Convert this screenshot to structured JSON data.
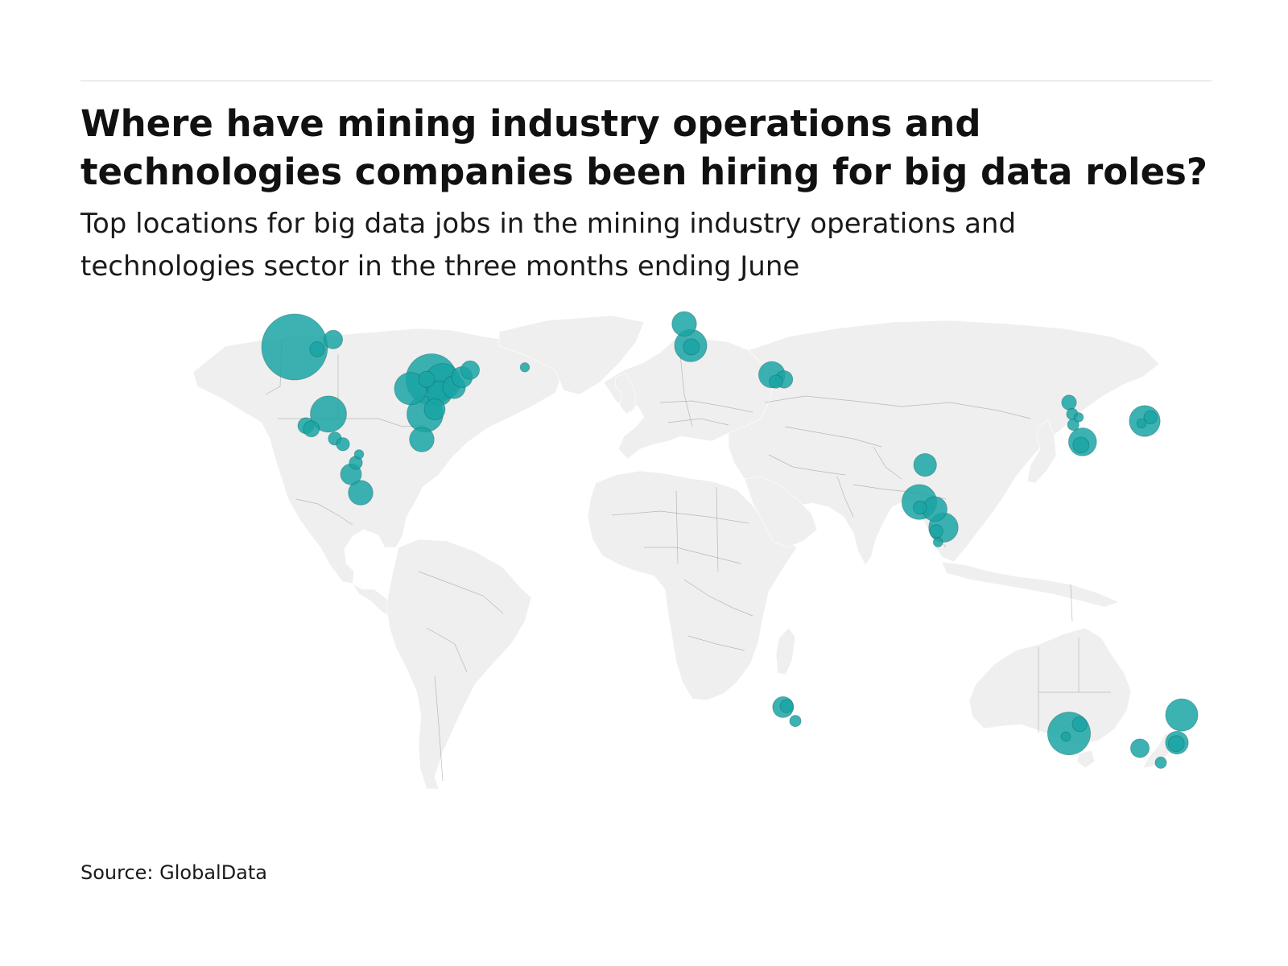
{
  "header": {
    "title": "Where have mining industry operations and technologies companies been hiring for big data roles?",
    "subtitle": "Top locations for big data jobs in the mining industry operations and technologies sector in the three months ending June"
  },
  "footer": {
    "source": "Source: GlobalData"
  },
  "colors": {
    "land": "#efefef",
    "border": "#888888",
    "bubble": "#1aa5a5",
    "bubble_dark": "#0b4545"
  },
  "chart_data": {
    "type": "bubble-map",
    "title": "Where have mining industry operations and technologies companies been hiring for big data roles?",
    "subtitle": "Top locations for big data jobs in the mining industry operations and technologies sector in the three months ending June",
    "size_unit": "relative share of job postings (estimated from bubble area)",
    "locations": [
      {
        "lon": -124.0,
        "lat": 52.0,
        "size": 100
      },
      {
        "lon": -117.0,
        "lat": 51.5,
        "size": 5
      },
      {
        "lon": -112.0,
        "lat": 53.6,
        "size": 8
      },
      {
        "lon": -81.5,
        "lat": 45.0,
        "size": 60
      },
      {
        "lon": -83.0,
        "lat": 45.0,
        "size": 6
      },
      {
        "lon": -88.0,
        "lat": 43.0,
        "size": 24
      },
      {
        "lon": -78.0,
        "lat": 44.5,
        "size": 30
      },
      {
        "lon": -74.5,
        "lat": 43.3,
        "size": 12
      },
      {
        "lon": -79.0,
        "lat": 42.0,
        "size": 14
      },
      {
        "lon": -72.0,
        "lat": 45.5,
        "size": 10
      },
      {
        "lon": -69.5,
        "lat": 47.0,
        "size": 8
      },
      {
        "lon": -83.5,
        "lat": 37.5,
        "size": 30
      },
      {
        "lon": -80.5,
        "lat": 38.5,
        "size": 10
      },
      {
        "lon": -84.5,
        "lat": 32.0,
        "size": 14
      },
      {
        "lon": -52.5,
        "lat": 47.6,
        "size": 2
      },
      {
        "lon": -113.5,
        "lat": 37.5,
        "size": 30
      },
      {
        "lon": -120.5,
        "lat": 35.0,
        "size": 6
      },
      {
        "lon": -118.8,
        "lat": 34.3,
        "size": 6
      },
      {
        "lon": -111.5,
        "lat": 32.2,
        "size": 4
      },
      {
        "lon": -109.0,
        "lat": 31.0,
        "size": 4
      },
      {
        "lon": -104.0,
        "lat": 28.8,
        "size": 2
      },
      {
        "lon": -105.0,
        "lat": 27.0,
        "size": 4
      },
      {
        "lon": -106.5,
        "lat": 24.5,
        "size": 10
      },
      {
        "lon": -103.5,
        "lat": 20.5,
        "size": 14
      },
      {
        "lon": -3.0,
        "lat": 57.0,
        "size": 14
      },
      {
        "lon": -1.0,
        "lat": 52.3,
        "size": 24
      },
      {
        "lon": -0.8,
        "lat": 52.0,
        "size": 6
      },
      {
        "lon": 24.2,
        "lat": 46.0,
        "size": 16
      },
      {
        "lon": 28.0,
        "lat": 45.0,
        "size": 7
      },
      {
        "lon": 25.5,
        "lat": 44.5,
        "size": 4
      },
      {
        "lon": 71.8,
        "lat": 26.5,
        "size": 12
      },
      {
        "lon": 70.0,
        "lat": 18.5,
        "size": 28
      },
      {
        "lon": 70.2,
        "lat": 17.3,
        "size": 4
      },
      {
        "lon": 74.8,
        "lat": 17.0,
        "size": 14
      },
      {
        "lon": 77.5,
        "lat": 13.0,
        "size": 20
      },
      {
        "lon": 75.3,
        "lat": 12.2,
        "size": 4
      },
      {
        "lon": 75.8,
        "lat": 9.8,
        "size": 2
      },
      {
        "lon": 116.5,
        "lat": 40.0,
        "size": 5
      },
      {
        "lon": 117.5,
        "lat": 37.5,
        "size": 3
      },
      {
        "lon": 119.5,
        "lat": 36.8,
        "size": 2
      },
      {
        "lon": 117.8,
        "lat": 35.2,
        "size": 3
      },
      {
        "lon": 120.7,
        "lat": 31.5,
        "size": 18
      },
      {
        "lon": 120.2,
        "lat": 30.8,
        "size": 6
      },
      {
        "lon": 140.0,
        "lat": 36.0,
        "size": 22
      },
      {
        "lon": 141.8,
        "lat": 36.8,
        "size": 4
      },
      {
        "lon": 139.0,
        "lat": 35.5,
        "size": 2
      },
      {
        "lon": 27.7,
        "lat": -25.8,
        "size": 10
      },
      {
        "lon": 28.8,
        "lat": -25.6,
        "size": 4
      },
      {
        "lon": 31.5,
        "lat": -28.8,
        "size": 3
      },
      {
        "lon": 116.5,
        "lat": -31.5,
        "size": 42
      },
      {
        "lon": 119.8,
        "lat": -29.5,
        "size": 5
      },
      {
        "lon": 115.5,
        "lat": -32.2,
        "size": 2
      },
      {
        "lon": 138.5,
        "lat": -34.7,
        "size": 8
      },
      {
        "lon": 151.5,
        "lat": -27.5,
        "size": 24
      },
      {
        "lon": 150.0,
        "lat": -33.5,
        "size": 12
      },
      {
        "lon": 149.8,
        "lat": -33.7,
        "size": 6
      },
      {
        "lon": 145.0,
        "lat": -37.8,
        "size": 3
      }
    ],
    "grid": false,
    "legend": "none"
  }
}
